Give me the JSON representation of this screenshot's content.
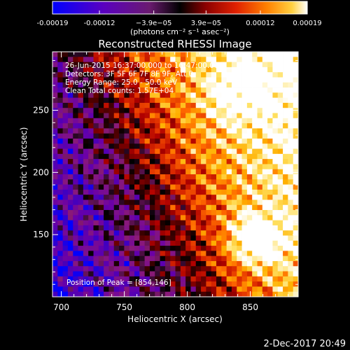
{
  "chart_data": {
    "type": "heatmap",
    "title": "Reconstructed RHESSI Image",
    "xlabel": "Heliocentric X (arcsec)",
    "ylabel": "Heliocentric Y (arcsec)",
    "xlim": [
      693,
      888
    ],
    "ylim": [
      100,
      297
    ],
    "x_ticks": [
      700,
      750,
      800,
      850
    ],
    "y_ticks": [
      150,
      200,
      250
    ],
    "colorbar": {
      "range": [
        -0.00019,
        0.00019
      ],
      "ticks": [
        -0.00019,
        -0.00012,
        -3.9e-05,
        3.9e-05,
        0.00012,
        0.00019
      ],
      "tick_labels": [
        "-0.00019",
        "-0.00012",
        "−3.9e−05",
        "3.9e−05",
        "0.00012",
        "0.00019"
      ],
      "unit_label": "(photons cm⁻² s⁻¹ asec⁻²)",
      "colormap": [
        "#0000ff",
        "#4a00b8",
        "#6a00a8",
        "#8a1a78",
        "#000000",
        "#5a0000",
        "#b00000",
        "#e03000",
        "#ff6a00",
        "#ffb000",
        "#ffe060",
        "#ffffff"
      ]
    },
    "peak": [
      854,
      146
    ],
    "annotations": [
      "26-Jun-2015 16:37:00.000 to 16:47:00.000",
      "Detectors: 3F 5F 6F 7F 8F 9F, Att 0",
      "Energy Range: 25.0 - 50.0 keV",
      "Clean     Total counts: 1.57E+04",
      "Position of Peak = [854,146]"
    ],
    "grid": false
  },
  "footer": {
    "date": "2-Dec-2017 20:49"
  }
}
